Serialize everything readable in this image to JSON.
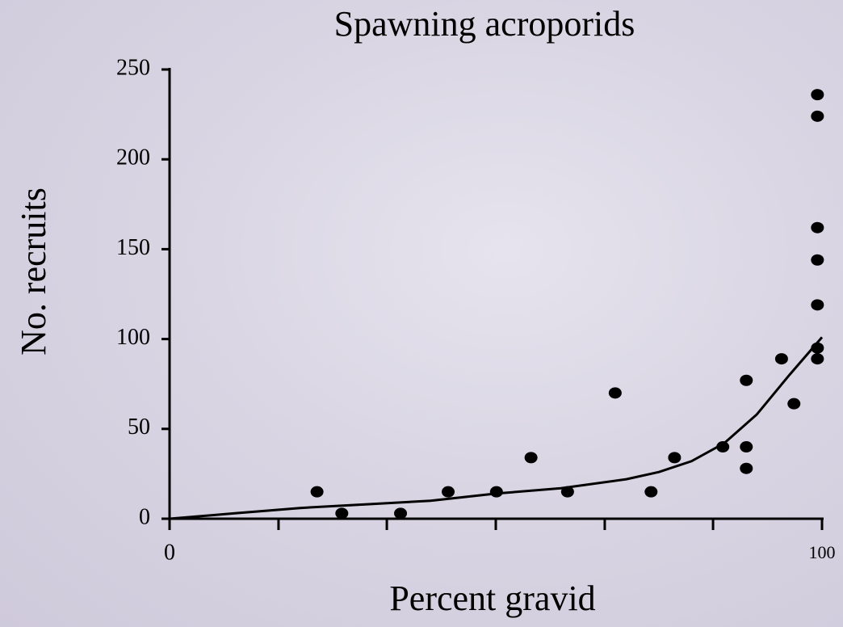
{
  "chart_data": {
    "type": "scatter",
    "title": "Spawning acroporids",
    "xlabel": "Percent gravid",
    "ylabel": "No. recruits",
    "x": [
      22.6,
      26.4,
      35.4,
      42.7,
      50.1,
      55.4,
      61,
      68.3,
      73.8,
      77.4,
      84.8,
      88.4,
      88.4,
      88.4,
      93.8,
      95.7,
      99.3,
      99.3,
      99.3,
      99.3,
      99.3,
      99.3,
      99.3
    ],
    "values": [
      15,
      3,
      3,
      15,
      15,
      34,
      15,
      70,
      15,
      34,
      40,
      40,
      28,
      77,
      89,
      64,
      236,
      224,
      162,
      144,
      119,
      95,
      89
    ],
    "color": "#000000",
    "fit": {
      "x": [
        0,
        10,
        20,
        30,
        40,
        50,
        60,
        70,
        75,
        80,
        85,
        90,
        95,
        100
      ],
      "values": [
        0,
        3,
        6,
        8,
        10,
        14,
        17,
        22,
        26,
        32,
        42,
        58,
        80,
        101
      ],
      "color": "#000000"
    },
    "xlim": [
      0,
      100
    ],
    "xticks": [
      0,
      100
    ],
    "xminorticks": [
      16.7,
      33.3,
      50,
      66.7,
      83.3
    ],
    "ylim": [
      0,
      250
    ],
    "yticks": [
      0,
      50,
      100,
      150,
      200,
      250
    ]
  }
}
